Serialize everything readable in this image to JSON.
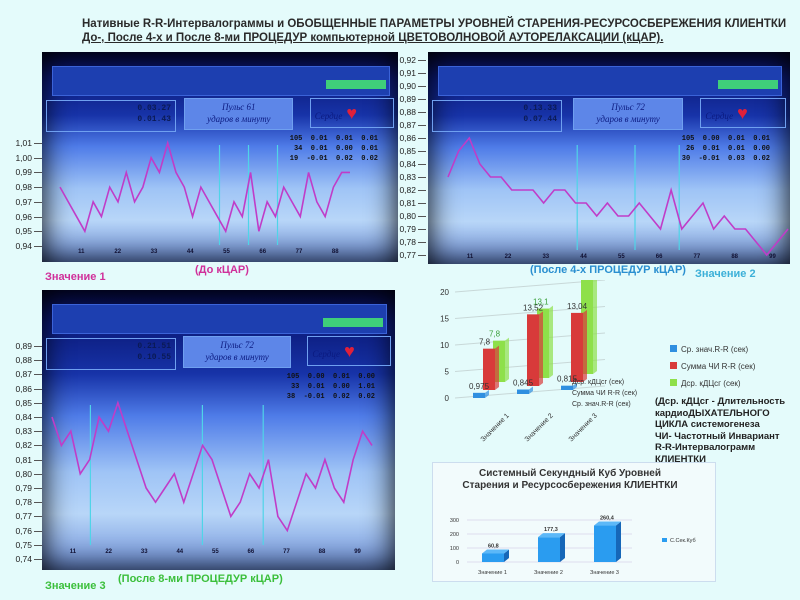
{
  "title": {
    "line1": "Нативные R-R-Интервалограммы и ОБОБЩЕННЫЕ ПАРАМЕТРЫ УРОВНЕЙ СТАРЕНИЯ-РЕСУРСОСБЕРЕЖЕНИЯ КЛИЕНТКИ",
    "line2": "До-, После 4-х и После 8-ми ПРОЦЕДУР компьютерной ЦВЕТОВОЛНОВОЙ АУТОРЕЛАКСАЦИИ (кЦАР)."
  },
  "panels": [
    {
      "label": "Значение 1",
      "caption": "(До кЦАР)",
      "label_color": "#d0309a",
      "caption_color": "#d0309a",
      "yticks": [
        "1,01",
        "1,00",
        "0,99",
        "0,98",
        "0,97",
        "0,96",
        "0,95",
        "0,94"
      ],
      "ymin": 0.94,
      "ymax": 1.01,
      "screen": {
        "time1": "0.03.27",
        "time2": "0.01.43",
        "pulse": "Пульс   61",
        "pulse2": "ударов в минуту",
        "heart": "Сердце",
        "table": [
          "105  0.01  0.01  0.01",
          "34  0.01  0.00  0.01",
          "19  -0.01  0.02  0.02"
        ]
      },
      "xticks": [
        "11",
        "22",
        "33",
        "44",
        "55",
        "66",
        "77",
        "88"
      ],
      "values": [
        0.98,
        0.97,
        0.96,
        0.95,
        0.97,
        0.96,
        0.98,
        0.97,
        0.99,
        0.97,
        0.98,
        1.0,
        0.99,
        1.01,
        0.99,
        0.98,
        0.96,
        0.98,
        0.97,
        0.96,
        0.95,
        0.97,
        0.96,
        0.99,
        0.95,
        0.97,
        0.96,
        0.98,
        0.97,
        0.96,
        0.99,
        0.97,
        0.96,
        0.98,
        0.99,
        0.99
      ]
    },
    {
      "label": "Значение 2",
      "caption": "(После 4-х ПРОЦЕДУР кЦАР)",
      "label_color": "#3cb0d8",
      "caption_color": "#2a8fd0",
      "yticks": [
        "0,92",
        "0,91",
        "0,90",
        "0,89",
        "0,88",
        "0,87",
        "0,86",
        "0,85",
        "0,84",
        "0,83",
        "0,82",
        "0,81",
        "0,80",
        "0,79",
        "0,78",
        "0,77"
      ],
      "ymin": 0.77,
      "ymax": 0.92,
      "screen": {
        "time1": "0.13.33",
        "time2": "0.07.44",
        "pulse": "Пульс   72",
        "pulse2": "ударов в минуту",
        "heart": "Сердце",
        "table": [
          "105  0.00  0.01  0.01",
          "26  0.01  0.01  0.00",
          "30  -0.01  0.03  0.02"
        ]
      },
      "xticks": [
        "11",
        "22",
        "33",
        "44",
        "55",
        "66",
        "77",
        "88",
        "99"
      ],
      "values": [
        0.83,
        0.85,
        0.86,
        0.84,
        0.83,
        0.83,
        0.82,
        0.82,
        0.82,
        0.81,
        0.82,
        0.82,
        0.81,
        0.81,
        0.8,
        0.81,
        0.8,
        0.8,
        0.81,
        0.8,
        0.79,
        0.82,
        0.79,
        0.8,
        0.81,
        0.79,
        0.8,
        0.79,
        0.79,
        0.78,
        0.77,
        0.78,
        0.79
      ]
    },
    {
      "label": "Значение 3",
      "caption": "(После 8-ми ПРОЦЕДУР кЦАР)",
      "label_color": "#3bbf3b",
      "caption_color": "#3bbf3b",
      "yticks": [
        "0,89",
        "0,88",
        "0,87",
        "0,86",
        "0,85",
        "0,84",
        "0,83",
        "0,82",
        "0,81",
        "0,80",
        "0,79",
        "0,78",
        "0,77",
        "0,76",
        "0,75",
        "0,74"
      ],
      "ymin": 0.74,
      "ymax": 0.89,
      "screen": {
        "time1": "0.21.51",
        "time2": "0.10.55",
        "pulse": "Пульс   72",
        "pulse2": "ударов в минуту",
        "heart": "Сердце",
        "table": [
          "105  0.00  0.01  0.00",
          "33  0.01  0.00  1.01",
          "38  -0.01  0.02  0.02"
        ]
      },
      "xticks": [
        "11",
        "22",
        "33",
        "44",
        "55",
        "66",
        "77",
        "88",
        "99"
      ],
      "values": [
        0.84,
        0.82,
        0.83,
        0.8,
        0.81,
        0.84,
        0.83,
        0.85,
        0.83,
        0.81,
        0.79,
        0.78,
        0.79,
        0.8,
        0.78,
        0.8,
        0.82,
        0.81,
        0.79,
        0.77,
        0.78,
        0.8,
        0.79,
        0.81,
        0.77,
        0.76,
        0.78,
        0.8,
        0.79,
        0.81,
        0.79,
        0.78,
        0.81,
        0.83,
        0.82
      ]
    }
  ],
  "chart_data": [
    {
      "type": "bar",
      "title": "",
      "categories": [
        "Значение 1",
        "Значение 2",
        "Значение 3"
      ],
      "ylim": [
        0,
        20
      ],
      "yticks": [
        "0",
        "5",
        "10",
        "15",
        "20"
      ],
      "series": [
        {
          "name": "Ср. знач.R-R (сек)",
          "color": "#2f8fe0",
          "values": [
            0.975,
            0.845,
            0.815
          ],
          "labels": [
            "0,975",
            "0,845",
            "0,815"
          ]
        },
        {
          "name": "Сумма ЧИ R-R (сек)",
          "color": "#d83a3a",
          "values": [
            7.8,
            13.52,
            13.04
          ],
          "labels": [
            "7,8",
            "13,52",
            "13,04"
          ]
        },
        {
          "name": "Дср. кДЦсг (сек)",
          "color": "#8ee04a",
          "values": [
            7.8,
            13.1,
            19.97
          ],
          "labels": [
            "7,8",
            "13,1",
            "19,97"
          ]
        }
      ],
      "legend": "right",
      "note": [
        "(Дср. кДЦсг - Длительность",
        "кардиоДЫХАТЕЛЬНОГО",
        "ЦИКЛА системогенеза",
        "ЧИ- Частотный Инвариант",
        "R-R-Интервалограмм",
        "КЛИЕНТКИ"
      ]
    },
    {
      "type": "bar",
      "title": "Системный Секундный Куб Уровней Старения и Ресурсосбережения КЛИЕНТКИ",
      "categories": [
        "Значение 1",
        "Значение 2",
        "Значение 3"
      ],
      "ylim": [
        0,
        300
      ],
      "yticks": [
        "0",
        "100",
        "200",
        "300"
      ],
      "series": [
        {
          "name": "С.Сек.Куб",
          "color": "#2a9cf0",
          "values": [
            60.8,
            177.3,
            260.4
          ],
          "labels": [
            "60,8",
            "177,3",
            "260,4"
          ]
        }
      ],
      "legend": "right"
    }
  ]
}
